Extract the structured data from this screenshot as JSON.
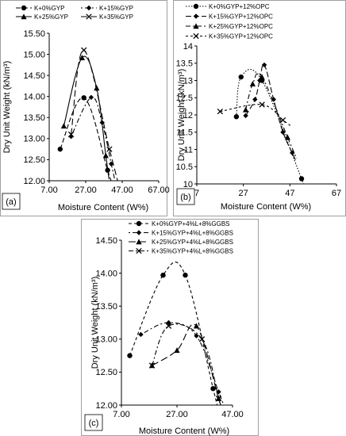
{
  "chart_data": [
    {
      "type": "line",
      "panel_label": "(a)",
      "xlabel": "Moisture Content (W%)",
      "ylabel": "Dry Unit Weight (kN/m³)",
      "xlim": [
        7,
        67
      ],
      "ylim": [
        12.0,
        15.5
      ],
      "x_ticks": [
        "7.00",
        "27.00",
        "47.00",
        "67.00"
      ],
      "x_tick_values": [
        7,
        27,
        47,
        67
      ],
      "y_ticks": [
        "12.00",
        "12.50",
        "13.00",
        "13.50",
        "14.00",
        "14.50",
        "15.00",
        "15.50"
      ],
      "y_tick_values": [
        12,
        12.5,
        13,
        13.5,
        14,
        14.5,
        15,
        15.5
      ],
      "series": [
        {
          "name": "K+0%GYP",
          "marker": "circle",
          "dash": "6,3",
          "points": [
            [
              13,
              12.75
            ],
            [
              26,
              13.97
            ],
            [
              39,
              12.25
            ]
          ]
        },
        {
          "name": "K+15%GYP",
          "marker": "diamond",
          "dash": "2,3,6,3",
          "points": [
            [
              19,
              13.05
            ],
            [
              30,
              13.98
            ],
            [
              36,
              13.38
            ],
            [
              41,
              12.4
            ]
          ]
        },
        {
          "name": "K+25%GYP",
          "marker": "triangle",
          "dash": "",
          "points": [
            [
              15,
              13.3
            ],
            [
              25,
              14.92
            ],
            [
              33,
              14.2
            ],
            [
              38,
              12.6
            ]
          ]
        },
        {
          "name": "K+35%GYP",
          "marker": "x",
          "dash": "8,4",
          "points": [
            [
              19,
              13.1
            ],
            [
              26,
              15.1
            ],
            [
              40,
              12.75
            ]
          ]
        }
      ]
    },
    {
      "type": "line",
      "panel_label": "(b)",
      "xlabel": "Moisture Content (W%)",
      "ylabel": "Dry Unit Weight (kN/m³)",
      "xlim": [
        7,
        67
      ],
      "ylim": [
        10,
        14
      ],
      "x_ticks": [
        "7",
        "27",
        "47",
        "67"
      ],
      "x_tick_values": [
        7,
        27,
        47,
        67
      ],
      "y_ticks": [
        "10",
        "10.5",
        "11",
        "11.5",
        "12",
        "12.5",
        "13",
        "13.5",
        "14"
      ],
      "y_tick_values": [
        10,
        10.5,
        11,
        11.5,
        12,
        12.5,
        13,
        13.5,
        14
      ],
      "series": [
        {
          "name": "K+0%GYP+12%OPC",
          "marker": "circle",
          "dash": "1.5,2",
          "points": [
            [
              24,
              11.95
            ],
            [
              26,
              13.1
            ],
            [
              35,
              13.0
            ],
            [
              52,
              10.15
            ]
          ]
        },
        {
          "name": "K+15%GYP+12%OPC",
          "marker": "diamond",
          "dash": "7,3",
          "points": [
            [
              28,
              11.98
            ],
            [
              32,
              12.45
            ],
            [
              34,
              13.0
            ],
            [
              36,
              13.45
            ],
            [
              40,
              12.45
            ],
            [
              44,
              11.5
            ],
            [
              48,
              10.9
            ]
          ]
        },
        {
          "name": "K+25%GYP+12%OPC",
          "marker": "triangle",
          "dash": "6,3,2,3",
          "points": [
            [
              28,
              12.15
            ],
            [
              31,
              12.9
            ],
            [
              35,
              13.1
            ],
            [
              46,
              11.35
            ]
          ]
        },
        {
          "name": "K+35%GYP+12%OPC",
          "marker": "x",
          "dash": "3,3",
          "points": [
            [
              17,
              12.1
            ],
            [
              35,
              12.3
            ],
            [
              44,
              11.85
            ]
          ]
        }
      ]
    },
    {
      "type": "line",
      "panel_label": "(c)",
      "xlabel": "Moisture Content (W%)",
      "ylabel": "Dry Unit Weight (kN/m³)",
      "xlim": [
        7,
        47
      ],
      "ylim": [
        12.0,
        14.5
      ],
      "x_ticks": [
        "7.00",
        "27.00",
        "47.00"
      ],
      "x_tick_values": [
        7,
        27,
        47
      ],
      "y_ticks": [
        "12.00",
        "12.50",
        "13.00",
        "13.50",
        "14.00",
        "14.50"
      ],
      "y_tick_values": [
        12,
        12.5,
        13,
        13.5,
        14,
        14.5
      ],
      "series": [
        {
          "name": "K+0%GYP+4%L+8%GGBS",
          "marker": "circle",
          "dash": "4,3",
          "points": [
            [
              10,
              12.75
            ],
            [
              22,
              13.97
            ],
            [
              30,
              13.97
            ],
            [
              40,
              12.25
            ]
          ]
        },
        {
          "name": "K+15%GYP+4%L+8%GGBS",
          "marker": "diamond",
          "dash": "2,3,6,3",
          "points": [
            [
              14,
              13.07
            ],
            [
              24,
              13.25
            ],
            [
              34,
              13.05
            ],
            [
              42,
              12.2
            ]
          ]
        },
        {
          "name": "K+25%GYP+4%L+8%GGBS",
          "marker": "triangle",
          "dash": "9,4",
          "points": [
            [
              18,
              12.6
            ],
            [
              27,
              12.83
            ],
            [
              34,
              13.2
            ],
            [
              42,
              12.1
            ]
          ]
        },
        {
          "name": "K+35%GYP+4%L+8%GGBS",
          "marker": "x",
          "dash": "6,3,2,3",
          "points": [
            [
              18,
              12.6
            ],
            [
              24,
              13.2
            ],
            [
              36,
              13.0
            ],
            [
              42,
              12.1
            ]
          ]
        }
      ]
    }
  ]
}
